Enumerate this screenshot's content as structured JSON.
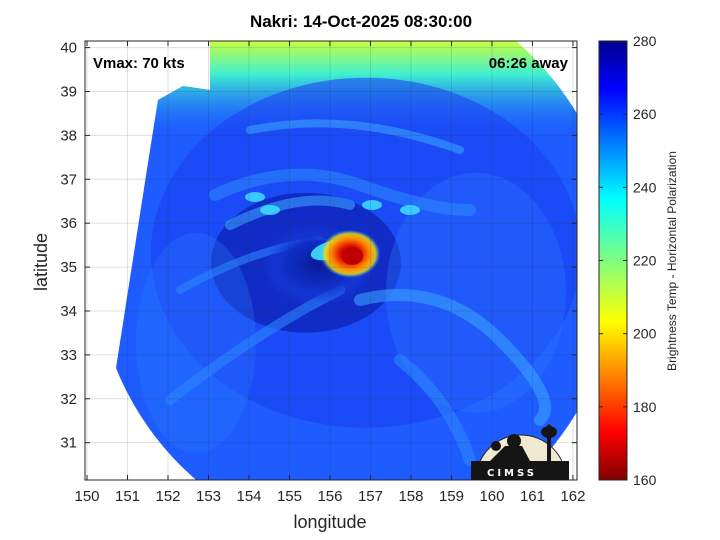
{
  "chart_data": {
    "type": "heatmap",
    "title": "Nakri: 14-Oct-2025 08:30:00",
    "xlabel": "longitude",
    "ylabel": "latitude",
    "xlim": [
      149.95,
      162.1
    ],
    "ylim": [
      30.15,
      40.15
    ],
    "xticks": [
      150,
      151,
      152,
      153,
      154,
      155,
      156,
      157,
      158,
      159,
      160,
      161,
      162
    ],
    "yticks": [
      31,
      32,
      33,
      34,
      35,
      36,
      37,
      38,
      39,
      40
    ],
    "grid": true,
    "annotations": {
      "vmax": "Vmax: 70 kts",
      "away": "06:26 away"
    },
    "colorbar": {
      "label": "Brightness Temp - Horizontal Polarization",
      "range": [
        160,
        280
      ],
      "ticks": [
        160,
        180,
        200,
        220,
        240,
        260,
        280
      ],
      "colormap": "jet"
    },
    "storm_center": {
      "lon": 156.5,
      "lat": 35.3
    },
    "swath_center": {
      "lon": 155.9,
      "lat": 35.1
    }
  },
  "logo": {
    "text": "CIMSS"
  }
}
